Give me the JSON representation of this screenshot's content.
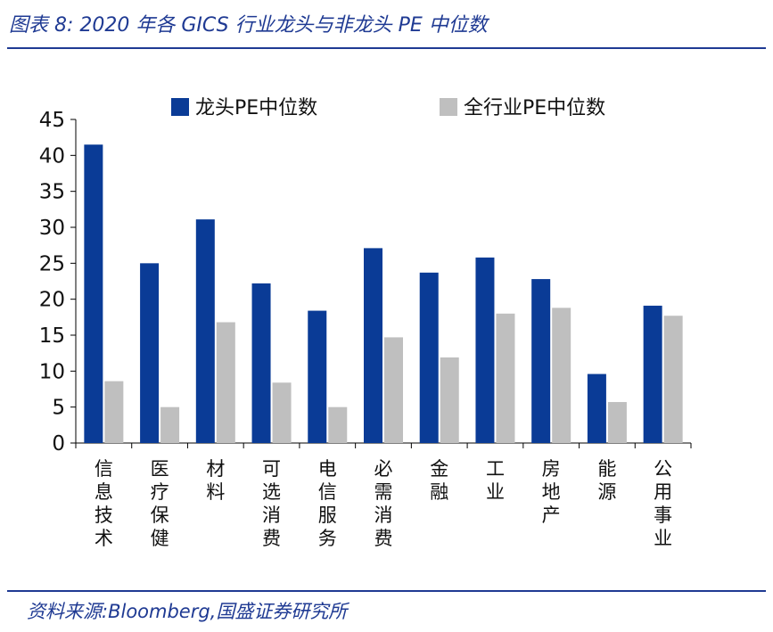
{
  "figure": {
    "title": "图表 8:  2020 年各 GICS 行业龙头与非龙头 PE 中位数",
    "source": "资料来源:Bloomberg,国盛证券研究所"
  },
  "colors": {
    "leader": "#0a3b96",
    "industry": "#bfbfbf",
    "accent": "#1f3a93"
  },
  "chart_data": {
    "type": "bar",
    "title": "",
    "xlabel": "",
    "ylabel": "",
    "ylim": [
      0,
      45
    ],
    "yticks": [
      0,
      5,
      10,
      15,
      20,
      25,
      30,
      35,
      40,
      45
    ],
    "grid": false,
    "legend_position": "top",
    "categories": [
      "信息技术",
      "医疗保健",
      "材料",
      "可选消费",
      "电信服务",
      "必需消费",
      "金融",
      "工业",
      "房地产",
      "能源",
      "公用事业"
    ],
    "series": [
      {
        "name": "龙头PE中位数",
        "color": "#0a3b96",
        "values": [
          41.5,
          25.0,
          31.1,
          22.2,
          18.4,
          27.1,
          23.7,
          25.8,
          22.8,
          9.6,
          19.1
        ]
      },
      {
        "name": "全行业PE中位数",
        "color": "#bfbfbf",
        "values": [
          8.6,
          5.0,
          16.8,
          8.4,
          5.0,
          14.7,
          11.9,
          18.0,
          18.8,
          5.7,
          17.7
        ]
      }
    ]
  }
}
